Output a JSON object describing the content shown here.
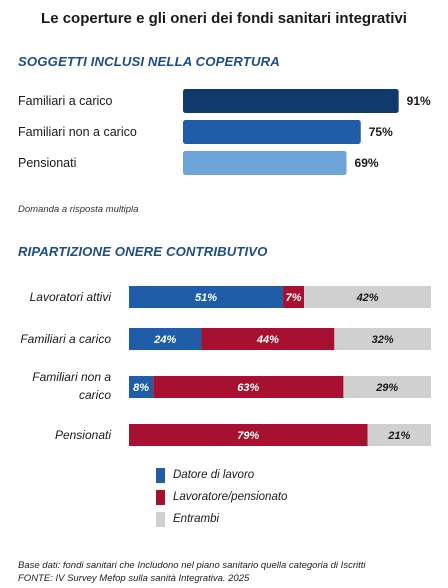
{
  "title": "Le coperture e gli oneri dei fondi sanitari integrativi",
  "section1": {
    "title": "SOGGETTI INCLUSI NELLA COPERTURA",
    "note": "Domanda a risposta multipla"
  },
  "section2": {
    "title": "RIPARTIZIONE ONERE CONTRIBUTIVO"
  },
  "legend": [
    {
      "label": "Datore di lavoro",
      "color": "#1f5da8"
    },
    {
      "label": "Lavoratore/pensionato",
      "color": "#a8102f"
    },
    {
      "label": "Entrambi",
      "color": "#d0d0d0"
    }
  ],
  "footer": {
    "line1": "Base dati: fondi sanitari che Includono nel piano sanitario quella categoria di Iscritti",
    "line2": "FONTE: IV Survey Mefop sulla sanità Integrativa. 2025"
  },
  "chart_data": [
    {
      "type": "bar",
      "orientation": "horizontal",
      "title": "SOGGETTI INCLUSI NELLA COPERTURA",
      "categories": [
        "Familiari a carico",
        "Familiari non a carico",
        "Pensionati"
      ],
      "values": [
        91,
        75,
        69
      ],
      "unit": "%",
      "colors": [
        "#0f3a6b",
        "#1f5da8",
        "#6fa4d8"
      ],
      "xlim": [
        0,
        100
      ],
      "grid": false
    },
    {
      "type": "bar",
      "orientation": "horizontal",
      "stacked": true,
      "title": "RIPARTIZIONE ONERE CONTRIBUTIVO",
      "categories": [
        "Lavoratori attivi",
        "Familiari a carico",
        "Familiari non a carico",
        "Pensionati"
      ],
      "series": [
        {
          "name": "Datore di lavoro",
          "values": [
            51,
            24,
            8,
            0
          ],
          "color": "#1f5da8"
        },
        {
          "name": "Lavoratore/pensionato",
          "values": [
            7,
            44,
            63,
            79
          ],
          "color": "#a8102f"
        },
        {
          "name": "Entrambi",
          "values": [
            42,
            32,
            29,
            21
          ],
          "color": "#d0d0d0"
        }
      ],
      "unit": "%",
      "xlim": [
        0,
        100
      ],
      "legend": "bottom",
      "grid": false
    }
  ]
}
